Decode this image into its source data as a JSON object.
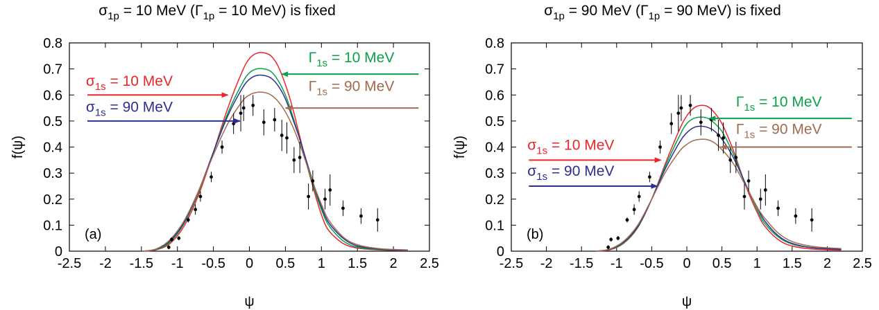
{
  "chart_data": [
    {
      "type": "line",
      "panel_label": "(a)",
      "title": {
        "parts": [
          {
            "t": "σ",
            "s": ""
          },
          {
            "t": "1p",
            "s": "sub"
          },
          {
            "t": " = 10 MeV  (",
            "s": ""
          },
          {
            "t": "Γ",
            "s": ""
          },
          {
            "t": "1p",
            "s": "sub"
          },
          {
            "t": " = 10 MeV) is fixed",
            "s": ""
          }
        ]
      },
      "xlabel": "ψ",
      "ylabel": "f(ψ)",
      "xlim": [
        -2.5,
        2.5
      ],
      "ylim": [
        0,
        0.8
      ],
      "xticks": [
        "-2.5",
        "-2",
        "-1.5",
        "-1",
        "-0.5",
        "0",
        "0.5",
        "1",
        "1.5",
        "2",
        "2.5"
      ],
      "yticks": [
        "0",
        "0.1",
        "0.2",
        "0.3",
        "0.4",
        "0.5",
        "0.6",
        "0.7",
        "0.8"
      ],
      "series": [
        {
          "name": "σ1s = 10 MeV",
          "color": "#e8262c",
          "x": [
            -1.5,
            -1.3,
            -1.1,
            -0.9,
            -0.7,
            -0.5,
            -0.3,
            -0.1,
            0.0,
            0.1,
            0.2,
            0.3,
            0.4,
            0.5,
            0.6,
            0.7,
            0.8,
            0.9,
            1.0,
            1.1,
            1.3,
            1.5,
            1.8,
            2.2
          ],
          "y": [
            0.0,
            0.005,
            0.03,
            0.1,
            0.22,
            0.38,
            0.55,
            0.69,
            0.74,
            0.76,
            0.762,
            0.75,
            0.71,
            0.64,
            0.55,
            0.44,
            0.33,
            0.23,
            0.14,
            0.08,
            0.03,
            0.012,
            0.005,
            0.002
          ]
        },
        {
          "name": "Γ1s = 10 MeV",
          "color": "#0aa14a",
          "x": [
            -1.5,
            -1.3,
            -1.1,
            -0.9,
            -0.7,
            -0.5,
            -0.3,
            -0.1,
            0.0,
            0.1,
            0.2,
            0.3,
            0.4,
            0.5,
            0.6,
            0.7,
            0.8,
            0.9,
            1.0,
            1.1,
            1.3,
            1.5,
            1.8,
            2.2
          ],
          "y": [
            0.0,
            0.006,
            0.035,
            0.11,
            0.23,
            0.38,
            0.53,
            0.645,
            0.685,
            0.7,
            0.7,
            0.69,
            0.655,
            0.6,
            0.52,
            0.43,
            0.33,
            0.24,
            0.16,
            0.1,
            0.04,
            0.015,
            0.006,
            0.003
          ]
        },
        {
          "name": "σ1s = 90 MeV",
          "color": "#2b2f8f",
          "x": [
            -1.5,
            -1.3,
            -1.1,
            -0.9,
            -0.7,
            -0.5,
            -0.3,
            -0.1,
            0.0,
            0.1,
            0.2,
            0.3,
            0.4,
            0.5,
            0.6,
            0.7,
            0.8,
            0.9,
            1.0,
            1.1,
            1.3,
            1.5,
            1.8,
            2.2
          ],
          "y": [
            0.0,
            0.007,
            0.04,
            0.115,
            0.235,
            0.38,
            0.52,
            0.625,
            0.66,
            0.675,
            0.675,
            0.665,
            0.635,
            0.585,
            0.51,
            0.43,
            0.34,
            0.25,
            0.17,
            0.11,
            0.05,
            0.02,
            0.008,
            0.003
          ]
        },
        {
          "name": "Γ1s = 90 MeV",
          "color": "#a26a4f",
          "x": [
            -1.5,
            -1.3,
            -1.1,
            -0.9,
            -0.7,
            -0.5,
            -0.3,
            -0.1,
            0.0,
            0.1,
            0.2,
            0.3,
            0.4,
            0.5,
            0.6,
            0.7,
            0.8,
            0.9,
            1.0,
            1.1,
            1.3,
            1.5,
            1.8,
            2.2
          ],
          "y": [
            0.0,
            0.008,
            0.045,
            0.12,
            0.235,
            0.37,
            0.49,
            0.575,
            0.6,
            0.61,
            0.61,
            0.6,
            0.575,
            0.535,
            0.48,
            0.41,
            0.33,
            0.25,
            0.18,
            0.12,
            0.055,
            0.025,
            0.01,
            0.005
          ]
        }
      ],
      "annotations": [
        {
          "parts": [
            {
              "t": "σ",
              "s": ""
            },
            {
              "t": "1s",
              "s": "sub"
            },
            {
              "t": " = 10 MeV",
              "s": ""
            }
          ],
          "color": "#e8262c",
          "x": -2.27,
          "y": 0.635,
          "arrow": {
            "x1": -2.25,
            "y1": 0.6,
            "x2": -0.3,
            "y2": 0.6
          }
        },
        {
          "parts": [
            {
              "t": "σ",
              "s": ""
            },
            {
              "t": "1s",
              "s": "sub"
            },
            {
              "t": " = 90 MeV",
              "s": ""
            }
          ],
          "color": "#2b2f8f",
          "x": -2.27,
          "y": 0.535,
          "arrow": {
            "x1": -2.25,
            "y1": 0.5,
            "x2": -0.13,
            "y2": 0.5
          }
        },
        {
          "parts": [
            {
              "t": "Γ",
              "s": ""
            },
            {
              "t": "1s",
              "s": "sub"
            },
            {
              "t": " = 10 MeV",
              "s": ""
            }
          ],
          "color": "#0aa14a",
          "x": 0.82,
          "y": 0.725,
          "arrow": {
            "x1": 2.35,
            "y1": 0.68,
            "x2": 0.45,
            "y2": 0.68
          }
        },
        {
          "parts": [
            {
              "t": "Γ",
              "s": ""
            },
            {
              "t": "1s",
              "s": "sub"
            },
            {
              "t": " = 90 MeV",
              "s": ""
            }
          ],
          "color": "#a26a4f",
          "x": 0.82,
          "y": 0.615,
          "arrow": {
            "x1": 2.35,
            "y1": 0.55,
            "x2": 0.5,
            "y2": 0.55
          }
        }
      ],
      "points": [
        {
          "x": -1.12,
          "y": 0.015,
          "err": 0.008
        },
        {
          "x": -1.08,
          "y": 0.045,
          "err": 0.008
        },
        {
          "x": -0.98,
          "y": 0.05,
          "err": 0.008
        },
        {
          "x": -0.85,
          "y": 0.12,
          "err": 0.01
        },
        {
          "x": -0.75,
          "y": 0.16,
          "err": 0.02
        },
        {
          "x": -0.68,
          "y": 0.21,
          "err": 0.02
        },
        {
          "x": -0.53,
          "y": 0.285,
          "err": 0.02
        },
        {
          "x": -0.38,
          "y": 0.4,
          "err": 0.025
        },
        {
          "x": -0.22,
          "y": 0.49,
          "err": 0.04
        },
        {
          "x": -0.12,
          "y": 0.53,
          "err": 0.07
        },
        {
          "x": -0.08,
          "y": 0.55,
          "err": 0.05
        },
        {
          "x": 0.05,
          "y": 0.56,
          "err": 0.04
        },
        {
          "x": 0.2,
          "y": 0.495,
          "err": 0.05
        },
        {
          "x": 0.35,
          "y": 0.505,
          "err": 0.045
        },
        {
          "x": 0.45,
          "y": 0.445,
          "err": 0.06
        },
        {
          "x": 0.52,
          "y": 0.435,
          "err": 0.06
        },
        {
          "x": 0.62,
          "y": 0.35,
          "err": 0.05
        },
        {
          "x": 0.7,
          "y": 0.36,
          "err": 0.06
        },
        {
          "x": 0.82,
          "y": 0.21,
          "err": 0.05
        },
        {
          "x": 0.88,
          "y": 0.27,
          "err": 0.04
        },
        {
          "x": 1.05,
          "y": 0.2,
          "err": 0.04
        },
        {
          "x": 1.12,
          "y": 0.235,
          "err": 0.06
        },
        {
          "x": 1.3,
          "y": 0.165,
          "err": 0.03
        },
        {
          "x": 1.55,
          "y": 0.135,
          "err": 0.03
        },
        {
          "x": 1.78,
          "y": 0.12,
          "err": 0.045
        }
      ]
    },
    {
      "type": "line",
      "panel_label": "(b)",
      "title": {
        "parts": [
          {
            "t": "σ",
            "s": ""
          },
          {
            "t": "1p",
            "s": "sub"
          },
          {
            "t": " = 90 MeV (",
            "s": ""
          },
          {
            "t": "Γ",
            "s": ""
          },
          {
            "t": "1p",
            "s": "sub"
          },
          {
            "t": " = 90 MeV) is fixed",
            "s": ""
          }
        ]
      },
      "xlabel": "ψ",
      "ylabel": "f(ψ)",
      "xlim": [
        -2.5,
        2.5
      ],
      "ylim": [
        0,
        0.8
      ],
      "xticks": [
        "-2.5",
        "-2",
        "-1.5",
        "-1",
        "-0.5",
        "0",
        "0.5",
        "1",
        "1.5",
        "2",
        "2.5"
      ],
      "yticks": [
        "0",
        "0.1",
        "0.2",
        "0.3",
        "0.4",
        "0.5",
        "0.6",
        "0.7",
        "0.8"
      ],
      "series": [
        {
          "name": "σ1s = 10 MeV",
          "color": "#e8262c",
          "x": [
            -1.3,
            -1.1,
            -0.9,
            -0.7,
            -0.5,
            -0.3,
            -0.1,
            0.0,
            0.1,
            0.2,
            0.3,
            0.4,
            0.5,
            0.6,
            0.7,
            0.8,
            0.9,
            1.0,
            1.1,
            1.3,
            1.5,
            1.8,
            2.2
          ],
          "y": [
            0.0,
            0.005,
            0.03,
            0.09,
            0.2,
            0.34,
            0.47,
            0.52,
            0.55,
            0.56,
            0.555,
            0.53,
            0.49,
            0.43,
            0.36,
            0.28,
            0.21,
            0.15,
            0.1,
            0.045,
            0.02,
            0.008,
            0.004
          ]
        },
        {
          "name": "Γ1s = 10 MeV",
          "color": "#0aa14a",
          "x": [
            -1.3,
            -1.1,
            -0.9,
            -0.7,
            -0.5,
            -0.3,
            -0.1,
            0.0,
            0.1,
            0.2,
            0.3,
            0.4,
            0.5,
            0.6,
            0.7,
            0.8,
            0.9,
            1.0,
            1.1,
            1.3,
            1.5,
            1.8,
            2.2
          ],
          "y": [
            0.0,
            0.006,
            0.032,
            0.092,
            0.2,
            0.33,
            0.445,
            0.49,
            0.51,
            0.515,
            0.51,
            0.49,
            0.46,
            0.41,
            0.35,
            0.28,
            0.22,
            0.16,
            0.11,
            0.055,
            0.027,
            0.013,
            0.008
          ]
        },
        {
          "name": "σ1s = 90 MeV",
          "color": "#2b2f8f",
          "x": [
            -1.3,
            -1.1,
            -0.9,
            -0.7,
            -0.5,
            -0.3,
            -0.1,
            0.0,
            0.1,
            0.2,
            0.3,
            0.4,
            0.5,
            0.6,
            0.7,
            0.8,
            0.9,
            1.0,
            1.1,
            1.3,
            1.5,
            1.8,
            2.2
          ],
          "y": [
            0.0,
            0.007,
            0.035,
            0.095,
            0.2,
            0.32,
            0.42,
            0.455,
            0.475,
            0.48,
            0.475,
            0.46,
            0.43,
            0.39,
            0.34,
            0.28,
            0.22,
            0.17,
            0.12,
            0.06,
            0.03,
            0.013,
            0.007
          ]
        },
        {
          "name": "Γ1s = 90 MeV",
          "color": "#a26a4f",
          "x": [
            -1.3,
            -1.1,
            -0.9,
            -0.7,
            -0.5,
            -0.3,
            -0.1,
            0.0,
            0.1,
            0.2,
            0.3,
            0.4,
            0.5,
            0.6,
            0.7,
            0.8,
            0.9,
            1.0,
            1.1,
            1.3,
            1.5,
            1.8,
            2.2
          ],
          "y": [
            0.0,
            0.008,
            0.038,
            0.1,
            0.2,
            0.305,
            0.385,
            0.41,
            0.425,
            0.43,
            0.428,
            0.415,
            0.39,
            0.36,
            0.32,
            0.27,
            0.22,
            0.17,
            0.13,
            0.07,
            0.037,
            0.018,
            0.01
          ]
        }
      ],
      "annotations": [
        {
          "parts": [
            {
              "t": "σ",
              "s": ""
            },
            {
              "t": "1s",
              "s": "sub"
            },
            {
              "t": " = 10 MeV",
              "s": ""
            }
          ],
          "color": "#e8262c",
          "x": -2.27,
          "y": 0.39,
          "arrow": {
            "x1": -2.25,
            "y1": 0.35,
            "x2": -0.37,
            "y2": 0.35
          }
        },
        {
          "parts": [
            {
              "t": "σ",
              "s": ""
            },
            {
              "t": "1s",
              "s": "sub"
            },
            {
              "t": " = 90 MeV",
              "s": ""
            }
          ],
          "color": "#2b2f8f",
          "x": -2.27,
          "y": 0.29,
          "arrow": {
            "x1": -2.25,
            "y1": 0.25,
            "x2": -0.42,
            "y2": 0.25
          }
        },
        {
          "parts": [
            {
              "t": "Γ",
              "s": ""
            },
            {
              "t": "1s",
              "s": "sub"
            },
            {
              "t": " = 10 MeV",
              "s": ""
            }
          ],
          "color": "#0aa14a",
          "x": 0.7,
          "y": 0.555,
          "arrow": {
            "x1": 2.35,
            "y1": 0.51,
            "x2": 0.32,
            "y2": 0.51
          }
        },
        {
          "parts": [
            {
              "t": "Γ",
              "s": ""
            },
            {
              "t": "1s",
              "s": "sub"
            },
            {
              "t": " = 90 MeV",
              "s": ""
            }
          ],
          "color": "#a26a4f",
          "x": 0.7,
          "y": 0.45,
          "arrow": {
            "x1": 2.35,
            "y1": 0.4,
            "x2": 0.48,
            "y2": 0.4
          }
        }
      ],
      "points": [
        {
          "x": -1.12,
          "y": 0.015,
          "err": 0.008
        },
        {
          "x": -1.08,
          "y": 0.045,
          "err": 0.008
        },
        {
          "x": -0.98,
          "y": 0.05,
          "err": 0.008
        },
        {
          "x": -0.85,
          "y": 0.12,
          "err": 0.01
        },
        {
          "x": -0.75,
          "y": 0.16,
          "err": 0.02
        },
        {
          "x": -0.68,
          "y": 0.21,
          "err": 0.02
        },
        {
          "x": -0.53,
          "y": 0.285,
          "err": 0.02
        },
        {
          "x": -0.38,
          "y": 0.4,
          "err": 0.025
        },
        {
          "x": -0.22,
          "y": 0.49,
          "err": 0.04
        },
        {
          "x": -0.12,
          "y": 0.53,
          "err": 0.07
        },
        {
          "x": -0.08,
          "y": 0.55,
          "err": 0.05
        },
        {
          "x": 0.05,
          "y": 0.56,
          "err": 0.04
        },
        {
          "x": 0.2,
          "y": 0.495,
          "err": 0.05
        },
        {
          "x": 0.35,
          "y": 0.505,
          "err": 0.045
        },
        {
          "x": 0.45,
          "y": 0.445,
          "err": 0.06
        },
        {
          "x": 0.52,
          "y": 0.435,
          "err": 0.06
        },
        {
          "x": 0.62,
          "y": 0.35,
          "err": 0.05
        },
        {
          "x": 0.7,
          "y": 0.36,
          "err": 0.06
        },
        {
          "x": 0.82,
          "y": 0.21,
          "err": 0.05
        },
        {
          "x": 0.88,
          "y": 0.27,
          "err": 0.04
        },
        {
          "x": 1.05,
          "y": 0.2,
          "err": 0.04
        },
        {
          "x": 1.12,
          "y": 0.235,
          "err": 0.06
        },
        {
          "x": 1.3,
          "y": 0.165,
          "err": 0.03
        },
        {
          "x": 1.55,
          "y": 0.135,
          "err": 0.03
        },
        {
          "x": 1.78,
          "y": 0.12,
          "err": 0.045
        }
      ]
    }
  ]
}
